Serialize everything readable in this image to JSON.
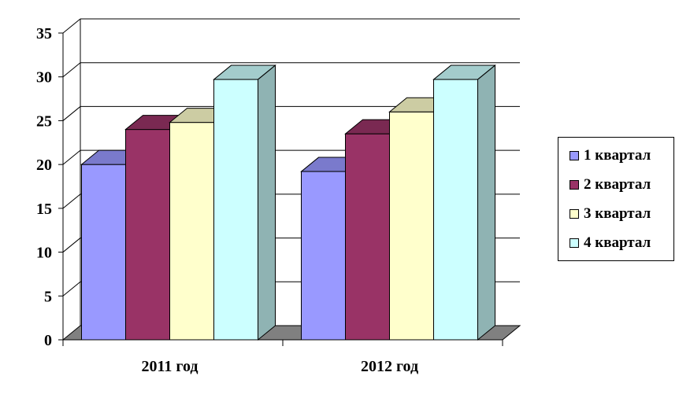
{
  "chart_data": {
    "type": "bar",
    "categories": [
      "2011 год",
      "2012 год"
    ],
    "series": [
      {
        "name": "1 квартал",
        "values": [
          20,
          19.2
        ]
      },
      {
        "name": "2 квартал",
        "values": [
          24,
          23.5
        ]
      },
      {
        "name": "3 квартал",
        "values": [
          24.8,
          26
        ]
      },
      {
        "name": "4 квартал",
        "values": [
          29.7,
          29.7
        ]
      }
    ],
    "ylim": [
      0,
      35
    ],
    "yticks": [
      "0",
      "5",
      "10",
      "15",
      "20",
      "25",
      "30",
      "35"
    ],
    "grid": true,
    "legend": "right",
    "colors": {
      "series": [
        "#9999ff",
        "#993366",
        "#ffffcc",
        "#ccffff"
      ],
      "series_top": [
        "#7a7acc",
        "#7a2952",
        "#ccccA3",
        "#a3cccc"
      ],
      "series_side": [
        "#6b6bb3",
        "#6b2447",
        "#b3b38f",
        "#8fb3b3"
      ],
      "axis": "#000000",
      "floor": "#808080",
      "gridline": "#000000"
    }
  }
}
